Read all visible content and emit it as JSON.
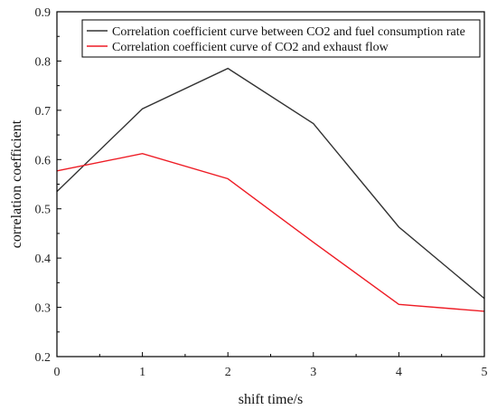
{
  "chart_data": {
    "type": "line",
    "title": "",
    "xlabel": "shift time/s",
    "ylabel": "correlation coefficient",
    "xlim": [
      0,
      5
    ],
    "ylim": [
      0.2,
      0.9
    ],
    "x": [
      0,
      1,
      2,
      3,
      4,
      5
    ],
    "x_ticks": [
      "0",
      "1",
      "2",
      "3",
      "4",
      "5"
    ],
    "y_ticks": [
      "0.2",
      "0.3",
      "0.4",
      "0.5",
      "0.6",
      "0.7",
      "0.8",
      "0.9"
    ],
    "grid": false,
    "legend_position": "top-right",
    "series": [
      {
        "name": "Correlation coefficient curve between CO2 and fuel consumption rate",
        "color": "#333333",
        "values": [
          0.535,
          0.703,
          0.785,
          0.673,
          0.463,
          0.318
        ]
      },
      {
        "name": "Correlation coefficient curve of CO2 and exhaust flow",
        "color": "#ee1c25",
        "values": [
          0.577,
          0.612,
          0.561,
          0.432,
          0.306,
          0.292
        ]
      }
    ]
  }
}
